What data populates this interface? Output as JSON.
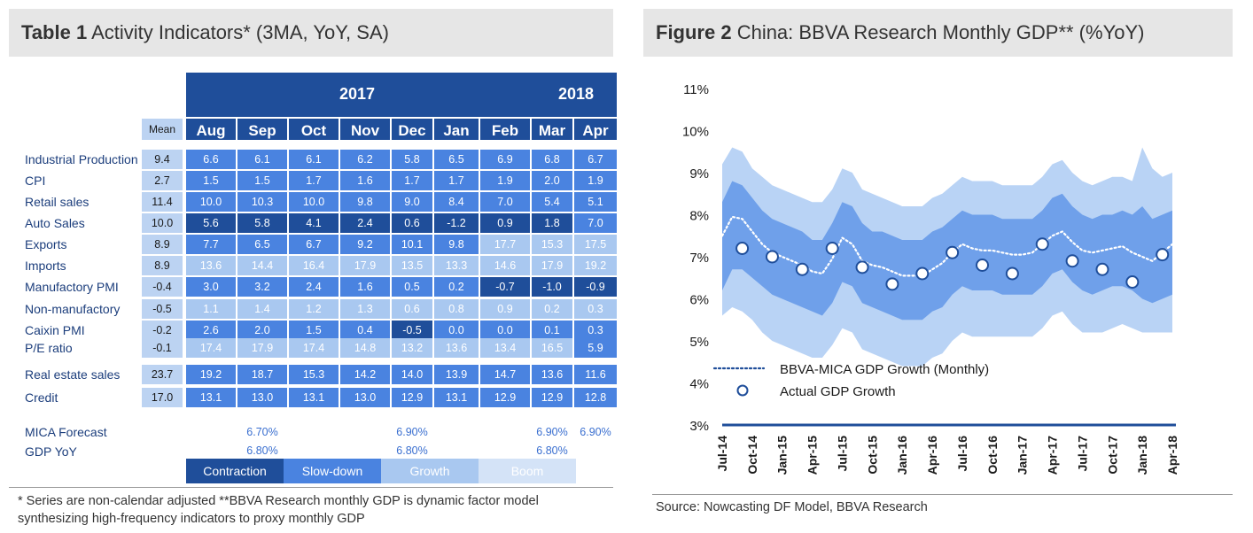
{
  "left_panel": {
    "title_bold": "Table 1",
    "title_rest": " Activity Indicators* (3MA, YoY, SA)",
    "years": [
      "2017",
      "2018"
    ],
    "mean_label": "Mean",
    "months": [
      "Aug",
      "Sep",
      "Oct",
      "Nov",
      "Dec",
      "Jan",
      "Feb",
      "Mar",
      "Apr"
    ],
    "rows": [
      {
        "label": "Industrial Production",
        "mean": "9.4",
        "values": [
          "6.6",
          "6.1",
          "6.1",
          "6.2",
          "5.8",
          "6.5",
          "6.9",
          "6.8",
          "6.7"
        ],
        "status": [
          "slowdown",
          "slowdown",
          "slowdown",
          "slowdown",
          "slowdown",
          "slowdown",
          "slowdown",
          "slowdown",
          "slowdown"
        ]
      },
      {
        "label": "CPI",
        "mean": "2.7",
        "values": [
          "1.5",
          "1.5",
          "1.7",
          "1.6",
          "1.7",
          "1.7",
          "1.9",
          "2.0",
          "1.9"
        ],
        "status": [
          "slowdown",
          "slowdown",
          "slowdown",
          "slowdown",
          "slowdown",
          "slowdown",
          "slowdown",
          "slowdown",
          "slowdown"
        ]
      },
      {
        "label": "Retail sales",
        "mean": "11.4",
        "values": [
          "10.0",
          "10.3",
          "10.0",
          "9.8",
          "9.0",
          "8.4",
          "7.0",
          "5.4",
          "5.1"
        ],
        "status": [
          "slowdown",
          "slowdown",
          "slowdown",
          "slowdown",
          "slowdown",
          "slowdown",
          "slowdown",
          "slowdown",
          "slowdown"
        ]
      },
      {
        "label": "Auto Sales",
        "mean": "10.0",
        "values": [
          "5.6",
          "5.8",
          "4.1",
          "2.4",
          "0.6",
          "-1.2",
          "0.9",
          "1.8",
          "7.0"
        ],
        "status": [
          "contraction",
          "contraction",
          "contraction",
          "contraction",
          "contraction",
          "contraction",
          "contraction",
          "contraction",
          "slowdown"
        ]
      },
      {
        "label": "Exports",
        "mean": "8.9",
        "values": [
          "7.7",
          "6.5",
          "6.7",
          "9.2",
          "10.1",
          "9.8",
          "17.7",
          "15.3",
          "17.5"
        ],
        "status": [
          "slowdown",
          "slowdown",
          "slowdown",
          "slowdown",
          "slowdown",
          "slowdown",
          "growth",
          "growth",
          "growth"
        ]
      },
      {
        "label": "Imports",
        "mean": "8.9",
        "values": [
          "13.6",
          "14.4",
          "16.4",
          "17.9",
          "13.5",
          "13.3",
          "14.6",
          "17.9",
          "19.2"
        ],
        "status": [
          "growth",
          "growth",
          "growth",
          "growth",
          "growth",
          "growth",
          "growth",
          "growth",
          "growth"
        ]
      },
      {
        "label": "Manufactory PMI",
        "mean": "-0.4",
        "values": [
          "3.0",
          "3.2",
          "2.4",
          "1.6",
          "0.5",
          "0.2",
          "-0.7",
          "-1.0",
          "-0.9"
        ],
        "status": [
          "slowdown",
          "slowdown",
          "slowdown",
          "slowdown",
          "slowdown",
          "slowdown",
          "contraction",
          "contraction",
          "contraction"
        ]
      },
      {
        "label": "Non-manufactory",
        "mean": "-0.5",
        "values": [
          "1.1",
          "1.4",
          "1.2",
          "1.3",
          "0.6",
          "0.8",
          "0.9",
          "0.2",
          "0.3"
        ],
        "status": [
          "growth",
          "growth",
          "growth",
          "growth",
          "growth",
          "growth",
          "growth",
          "growth",
          "growth"
        ]
      },
      {
        "label": "Caixin PMI",
        "mean": "-0.2",
        "values": [
          "2.6",
          "2.0",
          "1.5",
          "0.4",
          "-0.5",
          "0.0",
          "0.0",
          "0.1",
          "0.3"
        ],
        "status": [
          "slowdown",
          "slowdown",
          "slowdown",
          "slowdown",
          "contraction",
          "slowdown",
          "slowdown",
          "slowdown",
          "slowdown"
        ]
      },
      {
        "label": "P/E ratio",
        "mean": "-0.1",
        "values": [
          "17.4",
          "17.9",
          "17.4",
          "14.8",
          "13.2",
          "13.6",
          "13.4",
          "16.5",
          "5.9"
        ],
        "status": [
          "growth",
          "growth",
          "growth",
          "growth",
          "growth",
          "growth",
          "growth",
          "growth",
          "slowdown"
        ]
      },
      {
        "label": "Real estate sales",
        "mean": "23.7",
        "values": [
          "19.2",
          "18.7",
          "15.3",
          "14.2",
          "14.0",
          "13.9",
          "14.7",
          "13.6",
          "11.6"
        ],
        "status": [
          "slowdown",
          "slowdown",
          "slowdown",
          "slowdown",
          "slowdown",
          "slowdown",
          "slowdown",
          "slowdown",
          "slowdown"
        ]
      },
      {
        "label": "Credit",
        "mean": "17.0",
        "values": [
          "13.1",
          "13.0",
          "13.1",
          "13.0",
          "12.9",
          "13.1",
          "12.9",
          "12.9",
          "12.8"
        ],
        "status": [
          "slowdown",
          "slowdown",
          "slowdown",
          "slowdown",
          "slowdown",
          "slowdown",
          "slowdown",
          "slowdown",
          "slowdown"
        ]
      }
    ],
    "mica_forecast_label": "MICA Forecast",
    "gdp_yoy_label": "GDP YoY",
    "mica_forecast": [
      {
        "month": "Sep",
        "value": "6.70%"
      },
      {
        "month": "Dec",
        "value": "6.90%"
      },
      {
        "month": "Mar",
        "value": "6.90%"
      },
      {
        "month": "Apr",
        "value": "6.90%"
      }
    ],
    "gdp_yoy": [
      {
        "month": "Sep",
        "value": "6.80%"
      },
      {
        "month": "Dec",
        "value": "6.80%"
      },
      {
        "month": "Mar",
        "value": "6.80%"
      }
    ],
    "legend": [
      "Contraction",
      "Slow-down",
      "Growth",
      "Boom"
    ],
    "colors": {
      "contraction": "#1f4e9a",
      "slowdown": "#4a83e0",
      "growth": "#a9c8f0",
      "boom": "#d4e3f7",
      "mean": "#bcd3f2"
    },
    "footnote": "* Series are non-calendar adjusted **BBVA Research monthly GDP is dynamic factor model synthesizing high-frequency indicators to proxy monthly GDP"
  },
  "right_panel": {
    "title_bold": "Figure 2",
    "title_rest": " China: BBVA Research Monthly GDP** (%YoY)",
    "source": "Source:  Nowcasting  DF Model, BBVA Research"
  },
  "chart_data": {
    "type": "line",
    "ylim": [
      3,
      11
    ],
    "yticks": [
      "3%",
      "4%",
      "5%",
      "6%",
      "7%",
      "8%",
      "9%",
      "10%",
      "11%"
    ],
    "xticks": [
      "Jul-14",
      "Oct-14",
      "Jan-15",
      "Apr-15",
      "Jul-15",
      "Oct-15",
      "Jan-16",
      "Apr-16",
      "Jul-16",
      "Oct-16",
      "Jan-17",
      "Apr-17",
      "Jul-17",
      "Oct-17",
      "Jan-18",
      "Apr-18"
    ],
    "x": [
      "Jul-14",
      "Aug-14",
      "Sep-14",
      "Oct-14",
      "Nov-14",
      "Dec-14",
      "Jan-15",
      "Feb-15",
      "Mar-15",
      "Apr-15",
      "May-15",
      "Jun-15",
      "Jul-15",
      "Aug-15",
      "Sep-15",
      "Oct-15",
      "Nov-15",
      "Dec-15",
      "Jan-16",
      "Feb-16",
      "Mar-16",
      "Apr-16",
      "May-16",
      "Jun-16",
      "Jul-16",
      "Aug-16",
      "Sep-16",
      "Oct-16",
      "Nov-16",
      "Dec-16",
      "Jan-17",
      "Feb-17",
      "Mar-17",
      "Apr-17",
      "May-17",
      "Jun-17",
      "Jul-17",
      "Aug-17",
      "Sep-17",
      "Oct-17",
      "Nov-17",
      "Dec-17",
      "Jan-18",
      "Feb-18",
      "Mar-18",
      "Apr-18"
    ],
    "series": [
      {
        "name": "BBVA-MICA GDP Growth (Monthly)",
        "style": "dotted",
        "color": "#ffffff",
        "values": [
          7.5,
          7.95,
          7.9,
          7.6,
          7.3,
          7.1,
          7.0,
          6.9,
          6.8,
          6.65,
          6.6,
          6.95,
          7.45,
          7.3,
          6.9,
          6.8,
          6.75,
          6.65,
          6.55,
          6.55,
          6.55,
          6.7,
          6.85,
          7.1,
          7.3,
          7.2,
          7.15,
          7.15,
          7.1,
          7.05,
          7.05,
          7.1,
          7.3,
          7.5,
          7.6,
          7.35,
          7.15,
          7.1,
          7.15,
          7.2,
          7.25,
          7.1,
          7.0,
          6.9,
          7.1,
          7.3
        ]
      },
      {
        "name": "Actual GDP Growth",
        "style": "marker",
        "color": "#1f4e9a",
        "points": [
          {
            "x": "Sep-14",
            "y": 7.2
          },
          {
            "x": "Dec-14",
            "y": 7.0
          },
          {
            "x": "Mar-15",
            "y": 6.7
          },
          {
            "x": "Jun-15",
            "y": 7.2
          },
          {
            "x": "Sep-15",
            "y": 6.75
          },
          {
            "x": "Dec-15",
            "y": 6.35
          },
          {
            "x": "Mar-16",
            "y": 6.6
          },
          {
            "x": "Jun-16",
            "y": 7.1
          },
          {
            "x": "Sep-16",
            "y": 6.8
          },
          {
            "x": "Dec-16",
            "y": 6.6
          },
          {
            "x": "Mar-17",
            "y": 7.3
          },
          {
            "x": "Jun-17",
            "y": 6.9
          },
          {
            "x": "Sep-17",
            "y": 6.7
          },
          {
            "x": "Dec-17",
            "y": 6.4
          },
          {
            "x": "Mar-18",
            "y": 7.05
          }
        ]
      }
    ],
    "bands": {
      "outer_upper": [
        9.2,
        9.6,
        9.5,
        9.1,
        8.9,
        8.7,
        8.6,
        8.5,
        8.4,
        8.3,
        8.3,
        8.6,
        9.1,
        9.0,
        8.6,
        8.5,
        8.4,
        8.3,
        8.2,
        8.2,
        8.2,
        8.4,
        8.5,
        8.7,
        8.9,
        8.8,
        8.8,
        8.8,
        8.7,
        8.7,
        8.7,
        8.7,
        8.9,
        9.2,
        9.3,
        9.0,
        8.8,
        8.7,
        8.8,
        8.9,
        8.9,
        8.8,
        9.6,
        9.1,
        8.9,
        9.0
      ],
      "inner_upper": [
        8.3,
        8.8,
        8.7,
        8.4,
        8.1,
        7.9,
        7.8,
        7.7,
        7.6,
        7.4,
        7.4,
        7.8,
        8.3,
        8.2,
        7.8,
        7.6,
        7.6,
        7.5,
        7.4,
        7.4,
        7.4,
        7.6,
        7.7,
        7.9,
        8.1,
        8.0,
        8.0,
        8.0,
        7.9,
        7.9,
        7.9,
        7.9,
        8.1,
        8.4,
        8.5,
        8.2,
        8.0,
        7.9,
        8.0,
        8.0,
        8.1,
        8.0,
        8.2,
        7.9,
        8.0,
        8.1
      ],
      "inner_lower": [
        6.2,
        6.7,
        6.7,
        6.5,
        6.3,
        6.1,
        6.0,
        5.9,
        5.8,
        5.7,
        5.6,
        5.9,
        6.4,
        6.3,
        5.9,
        5.8,
        5.7,
        5.6,
        5.5,
        5.5,
        5.5,
        5.7,
        5.8,
        6.1,
        6.3,
        6.2,
        6.2,
        6.2,
        6.1,
        6.1,
        6.1,
        6.1,
        6.3,
        6.6,
        6.7,
        6.4,
        6.2,
        6.1,
        6.2,
        6.3,
        6.3,
        6.2,
        6.0,
        5.9,
        6.0,
        6.1
      ],
      "outer_lower": [
        5.6,
        5.8,
        5.7,
        5.5,
        5.2,
        5.0,
        4.9,
        4.8,
        4.7,
        4.6,
        4.6,
        4.9,
        5.3,
        5.2,
        4.8,
        4.7,
        4.6,
        4.5,
        4.4,
        4.4,
        4.4,
        4.6,
        4.7,
        5.0,
        5.2,
        5.1,
        5.1,
        5.1,
        5.1,
        5.1,
        5.1,
        5.1,
        5.3,
        5.6,
        5.7,
        5.4,
        5.2,
        5.2,
        5.2,
        5.3,
        5.4,
        5.3,
        5.2,
        5.2,
        5.2,
        5.2
      ],
      "outer_color": "#b9d3f5",
      "inner_color": "#6fa0ea"
    },
    "legend": [
      "BBVA-MICA GDP Growth (Monthly)",
      "Actual GDP Growth"
    ]
  }
}
